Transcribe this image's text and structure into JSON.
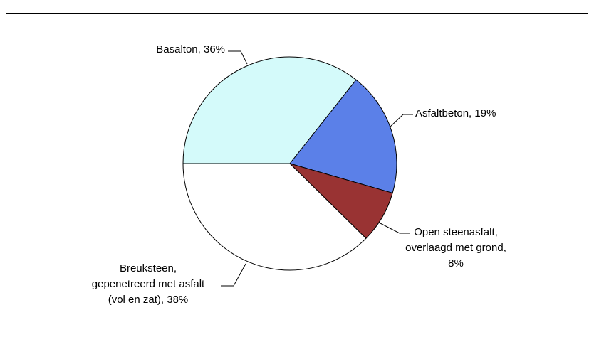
{
  "chart_data": {
    "type": "pie",
    "labels": [
      [
        "Basalton, 36%"
      ],
      [
        "Asfaltbeton, 19%"
      ],
      [
        "Open steenasfalt,",
        "overlaagd met grond,",
        "8%"
      ],
      [
        "Breuksteen,",
        "gepenetreerd met asfalt",
        "(vol en zat), 38%"
      ]
    ],
    "values": [
      36,
      19,
      8,
      38
    ],
    "colors": [
      "#d4fafa",
      "#5b80e8",
      "#993333",
      "#ffffff"
    ]
  }
}
